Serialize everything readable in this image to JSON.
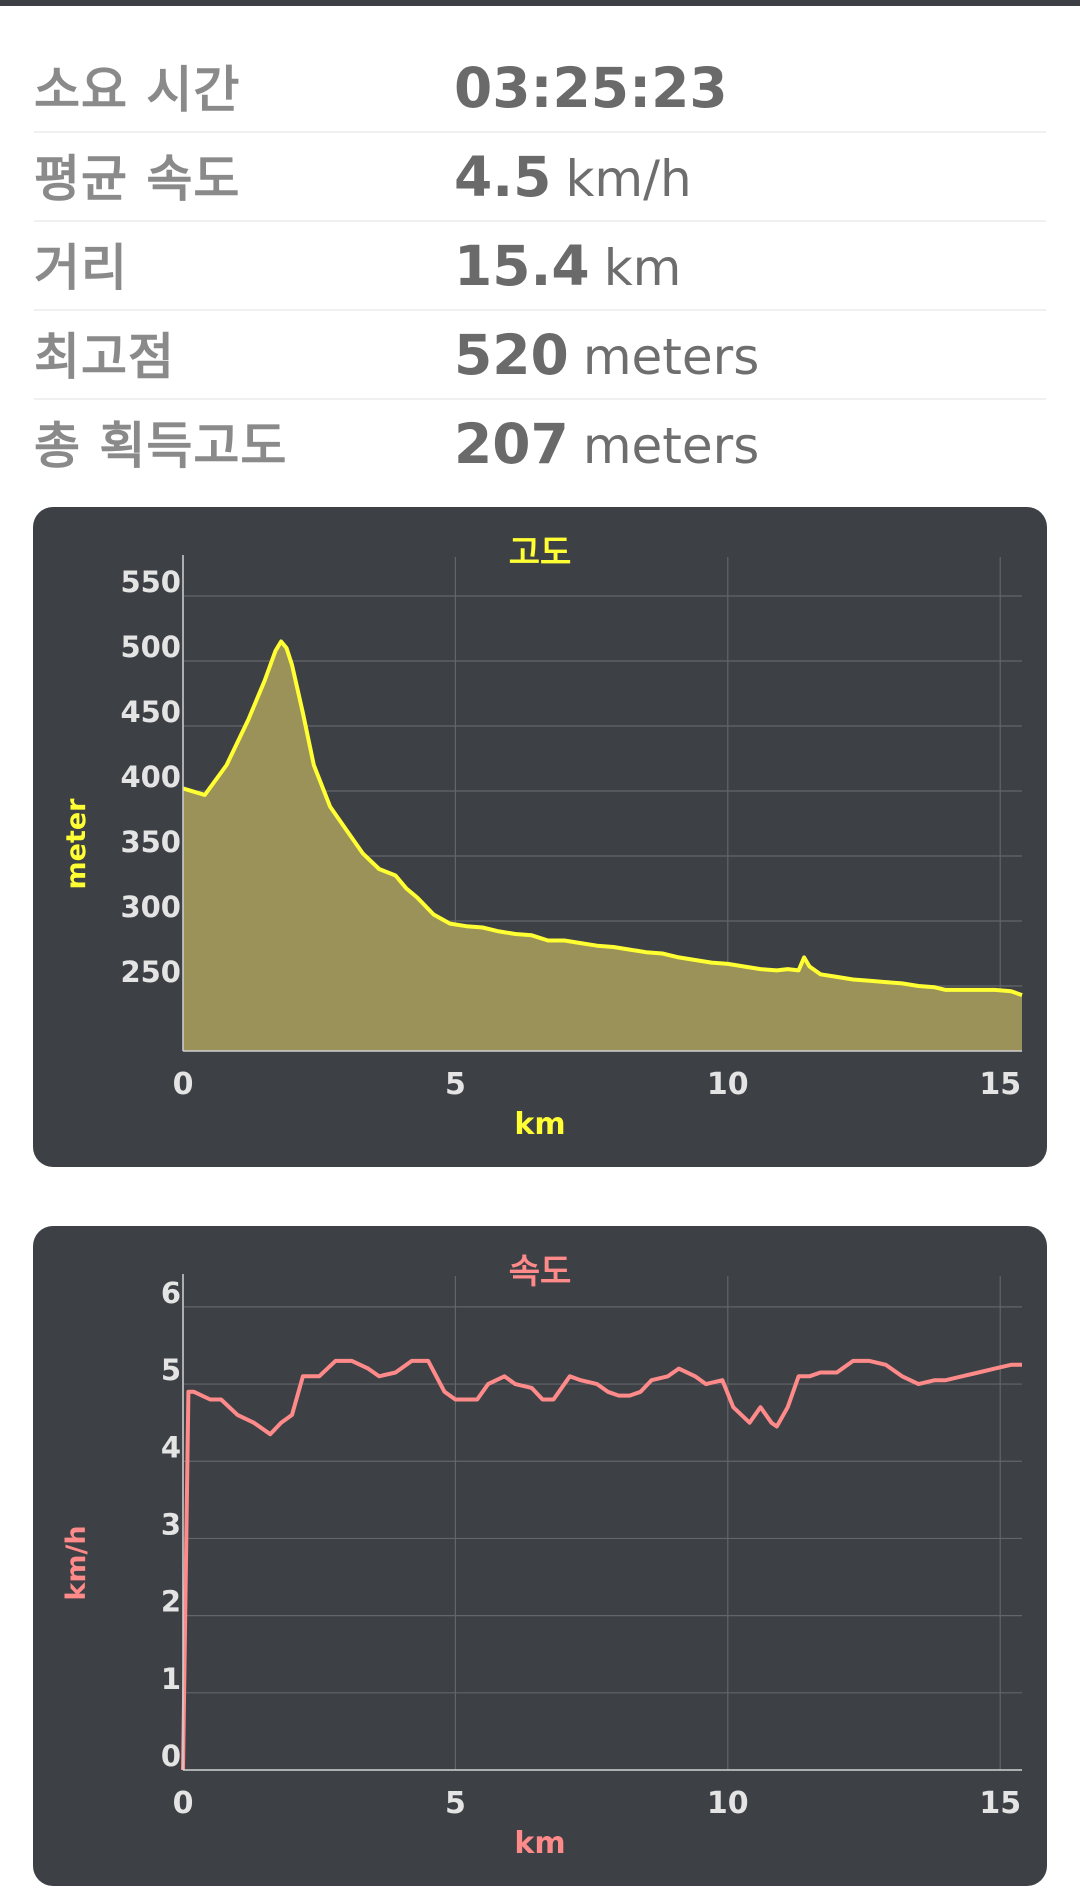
{
  "stats": [
    {
      "label": "소요 시간",
      "value": "03:25:23",
      "unit": ""
    },
    {
      "label": "평균 속도",
      "value": "4.5",
      "unit": "km/h"
    },
    {
      "label": "거리",
      "value": "15.4",
      "unit": "km"
    },
    {
      "label": "최고점",
      "value": "520",
      "unit": "meters"
    },
    {
      "label": "총 획득고도",
      "value": "207",
      "unit": "meters"
    }
  ],
  "chart_data": [
    {
      "type": "area",
      "title": "고도",
      "xlabel": "km",
      "ylabel": "meter",
      "color": "#ffff33",
      "fill": "#9a9258",
      "xlim": [
        0,
        15.4
      ],
      "ylim": [
        200,
        580
      ],
      "xticks": [
        0,
        5,
        10,
        15
      ],
      "yticks": [
        250,
        300,
        350,
        400,
        450,
        500,
        550
      ],
      "grid": true,
      "x": [
        0,
        0.4,
        0.8,
        1.2,
        1.5,
        1.7,
        1.8,
        1.9,
        2.0,
        2.2,
        2.4,
        2.7,
        3.0,
        3.3,
        3.6,
        3.9,
        4.1,
        4.3,
        4.6,
        4.9,
        5.2,
        5.5,
        5.8,
        6.1,
        6.4,
        6.7,
        7.0,
        7.3,
        7.6,
        7.9,
        8.2,
        8.5,
        8.8,
        9.1,
        9.4,
        9.7,
        10.0,
        10.3,
        10.6,
        10.9,
        11.1,
        11.3,
        11.4,
        11.5,
        11.7,
        12.0,
        12.3,
        12.6,
        12.9,
        13.2,
        13.5,
        13.8,
        14.0,
        14.3,
        14.6,
        14.9,
        15.2,
        15.4
      ],
      "y": [
        402,
        397,
        420,
        455,
        485,
        508,
        515,
        510,
        497,
        460,
        420,
        388,
        370,
        352,
        340,
        335,
        325,
        318,
        305,
        298,
        296,
        295,
        292,
        290,
        289,
        285,
        285,
        283,
        281,
        280,
        278,
        276,
        275,
        272,
        270,
        268,
        267,
        265,
        263,
        262,
        263,
        262,
        272,
        265,
        259,
        257,
        255,
        254,
        253,
        252,
        250,
        249,
        247,
        247,
        247,
        247,
        246,
        243
      ]
    },
    {
      "type": "line",
      "title": "속도",
      "xlabel": "km",
      "ylabel": "km/h",
      "color": "#ff8a8a",
      "xlim": [
        0,
        15.4
      ],
      "ylim": [
        0,
        6.4
      ],
      "xticks": [
        0,
        5,
        10,
        15
      ],
      "yticks": [
        0,
        1,
        2,
        3,
        4,
        5,
        6
      ],
      "grid": true,
      "x": [
        0,
        0.1,
        0.2,
        0.5,
        0.7,
        1.0,
        1.3,
        1.6,
        1.8,
        2.0,
        2.2,
        2.5,
        2.8,
        3.1,
        3.4,
        3.6,
        3.9,
        4.2,
        4.5,
        4.8,
        5.0,
        5.2,
        5.4,
        5.6,
        5.9,
        6.1,
        6.4,
        6.6,
        6.8,
        7.1,
        7.3,
        7.6,
        7.8,
        8.0,
        8.2,
        8.4,
        8.6,
        8.9,
        9.1,
        9.4,
        9.6,
        9.9,
        10.1,
        10.4,
        10.6,
        10.8,
        10.9,
        11.1,
        11.3,
        11.5,
        11.7,
        12.0,
        12.3,
        12.6,
        12.9,
        13.2,
        13.5,
        13.8,
        14.0,
        14.3,
        14.6,
        14.9,
        15.2,
        15.4
      ],
      "y": [
        0,
        4.9,
        4.9,
        4.8,
        4.8,
        4.6,
        4.5,
        4.35,
        4.5,
        4.6,
        5.1,
        5.1,
        5.3,
        5.3,
        5.2,
        5.1,
        5.15,
        5.3,
        5.3,
        4.9,
        4.8,
        4.8,
        4.8,
        5.0,
        5.1,
        5.0,
        4.95,
        4.8,
        4.8,
        5.1,
        5.05,
        5.0,
        4.9,
        4.85,
        4.85,
        4.9,
        5.05,
        5.1,
        5.2,
        5.1,
        5.0,
        5.05,
        4.7,
        4.5,
        4.7,
        4.5,
        4.45,
        4.7,
        5.1,
        5.1,
        5.15,
        5.15,
        5.3,
        5.3,
        5.25,
        5.1,
        5.0,
        5.05,
        5.05,
        5.1,
        5.15,
        5.2,
        5.25,
        5.25
      ]
    }
  ]
}
